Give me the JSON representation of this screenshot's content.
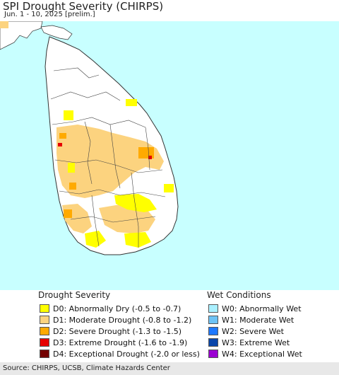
{
  "header": {
    "title": "SPI Drought Severity (CHIRPS)",
    "subtitle": "Jun. 1 - 10, 2025 [prelim.]"
  },
  "map": {
    "ocean_color": "#c8ffff",
    "land_color": "#ffffff",
    "border_color": "#333333"
  },
  "legend": {
    "drought_title": "Drought Severity",
    "wet_title": "Wet Conditions",
    "drought_items": [
      {
        "label": "D0: Abnormally Dry (-0.5 to -0.7)",
        "color": "#ffff00"
      },
      {
        "label": "D1: Moderate Drought (-0.8 to -1.2)",
        "color": "#fcd37f"
      },
      {
        "label": "D2: Severe Drought (-1.3 to -1.5)",
        "color": "#ffaa00"
      },
      {
        "label": "D3: Extreme Drought (-1.6 to -1.9)",
        "color": "#e60000"
      },
      {
        "label": "D4: Exceptional Drought (-2.0 or less)",
        "color": "#730000"
      }
    ],
    "wet_items": [
      {
        "label": "W0: Abnormally Wet",
        "color": "#aaf0ff"
      },
      {
        "label": "W1: Moderate Wet",
        "color": "#6ec3f5"
      },
      {
        "label": "W2: Severe Wet",
        "color": "#1e78ff"
      },
      {
        "label": "W3: Extreme Wet",
        "color": "#0a46aa"
      },
      {
        "label": "W4: Exceptional Wet",
        "color": "#9b00d2"
      }
    ]
  },
  "footer": {
    "source": "Source: CHIRPS, UCSB, Climate Hazards Center"
  }
}
